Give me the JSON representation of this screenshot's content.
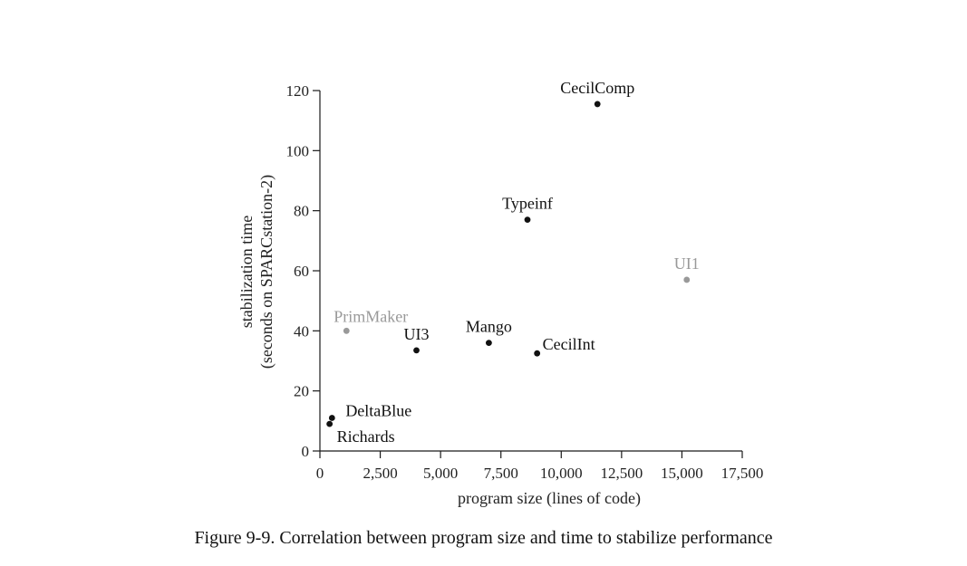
{
  "caption": "Figure 9-9.  Correlation between program size and time to stabilize performance",
  "chart_data": {
    "type": "scatter",
    "title": "",
    "xlabel": "program size (lines of code)",
    "ylabel_line1": "stabilization time",
    "ylabel_line2": "(seconds on SPARCstation-2)",
    "xlim": [
      0,
      17500
    ],
    "ylim": [
      0,
      120
    ],
    "xticks": [
      0,
      2500,
      5000,
      7500,
      10000,
      12500,
      15000,
      17500
    ],
    "xtick_labels": [
      "0",
      "2,500",
      "5,000",
      "7,500",
      "10,000",
      "12,500",
      "15,000",
      "17,500"
    ],
    "yticks": [
      0,
      20,
      40,
      60,
      80,
      100,
      120
    ],
    "ytick_labels": [
      "0",
      "20",
      "40",
      "60",
      "80",
      "100",
      "120"
    ],
    "grid": false,
    "colors": {
      "primary": "#111111",
      "secondary": "#999999"
    },
    "points": [
      {
        "label": "CecilComp",
        "x": 11500,
        "y": 115.5,
        "color": "primary",
        "label_anchor": "above"
      },
      {
        "label": "Typeinf",
        "x": 8600,
        "y": 77,
        "color": "primary",
        "label_anchor": "above"
      },
      {
        "label": "UI1",
        "x": 15200,
        "y": 57,
        "color": "secondary",
        "label_anchor": "above"
      },
      {
        "label": "PrimMaker",
        "x": 1100,
        "y": 40,
        "color": "secondary",
        "label_anchor": "above-left"
      },
      {
        "label": "UI3",
        "x": 4000,
        "y": 33.5,
        "color": "primary",
        "label_anchor": "above"
      },
      {
        "label": "Mango",
        "x": 7000,
        "y": 36,
        "color": "primary",
        "label_anchor": "above"
      },
      {
        "label": "CecilInt",
        "x": 9000,
        "y": 32.5,
        "color": "primary",
        "label_anchor": "right"
      },
      {
        "label": "DeltaBlue",
        "x": 500,
        "y": 11,
        "color": "primary",
        "label_anchor": "upper-right"
      },
      {
        "label": "Richards",
        "x": 400,
        "y": 9,
        "color": "primary",
        "label_anchor": "lower-right"
      }
    ]
  }
}
